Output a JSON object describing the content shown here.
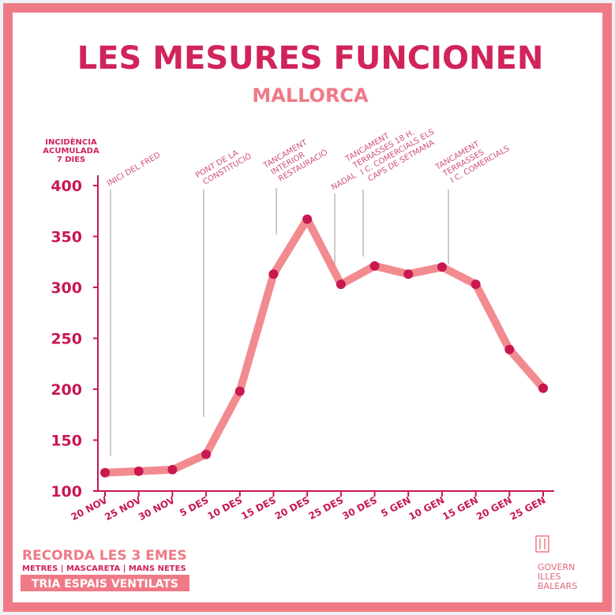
{
  "chart_data": {
    "type": "line",
    "title": "LES MESURES FUNCIONEN",
    "subtitle": "MALLORCA",
    "y_label": [
      "INCIDÈNCIA",
      "ACUMULADA",
      "7 DIES"
    ],
    "categories": [
      "20 NOV",
      "25 NOV",
      "30 NOV",
      "5 DES",
      "10 DES",
      "15 DES",
      "20 DES",
      "25 DES",
      "30 DES",
      "5 GEN",
      "10 GEN",
      "15 GEN",
      "20 GEN",
      "25 GEN"
    ],
    "series": [
      {
        "color": "#f28b8f",
        "marker_color": "#c8184f",
        "values": [
          118,
          119.5,
          121,
          136,
          198,
          313,
          367,
          303,
          321,
          313,
          320,
          303,
          239,
          201
        ]
      }
    ],
    "ylim": [
      100,
      400
    ],
    "yticks": [
      100,
      150,
      200,
      250,
      300,
      350,
      400
    ],
    "annotations": [
      {
        "lines": [
          "INICI DEL FRED"
        ]
      },
      {
        "lines": [
          "PONT DE LA",
          "CONSTITUCIÓ"
        ]
      },
      {
        "lines": [
          "TANCAMENT",
          "INTERIOR",
          "RESTAURACIÓ"
        ]
      },
      {
        "lines": [
          "NADAL"
        ]
      },
      {
        "lines": [
          "TANCAMENT",
          "TERRASSES 18 H.",
          "I C. COMERCIALS ELS",
          "CAPS DE SETMANA"
        ]
      },
      {
        "lines": [
          "TANCAMENT",
          "TERRASSES",
          "I C. COMERCIALS"
        ]
      }
    ],
    "footer": {
      "headline": "RECORDA LES 3 EMES",
      "rules": "METRES | MASCARETA | MANS NETES",
      "banner": "TRIA ESPAIS VENTILATS"
    },
    "logo": [
      "GOVERN",
      "ILLES",
      "BALEARS"
    ]
  }
}
